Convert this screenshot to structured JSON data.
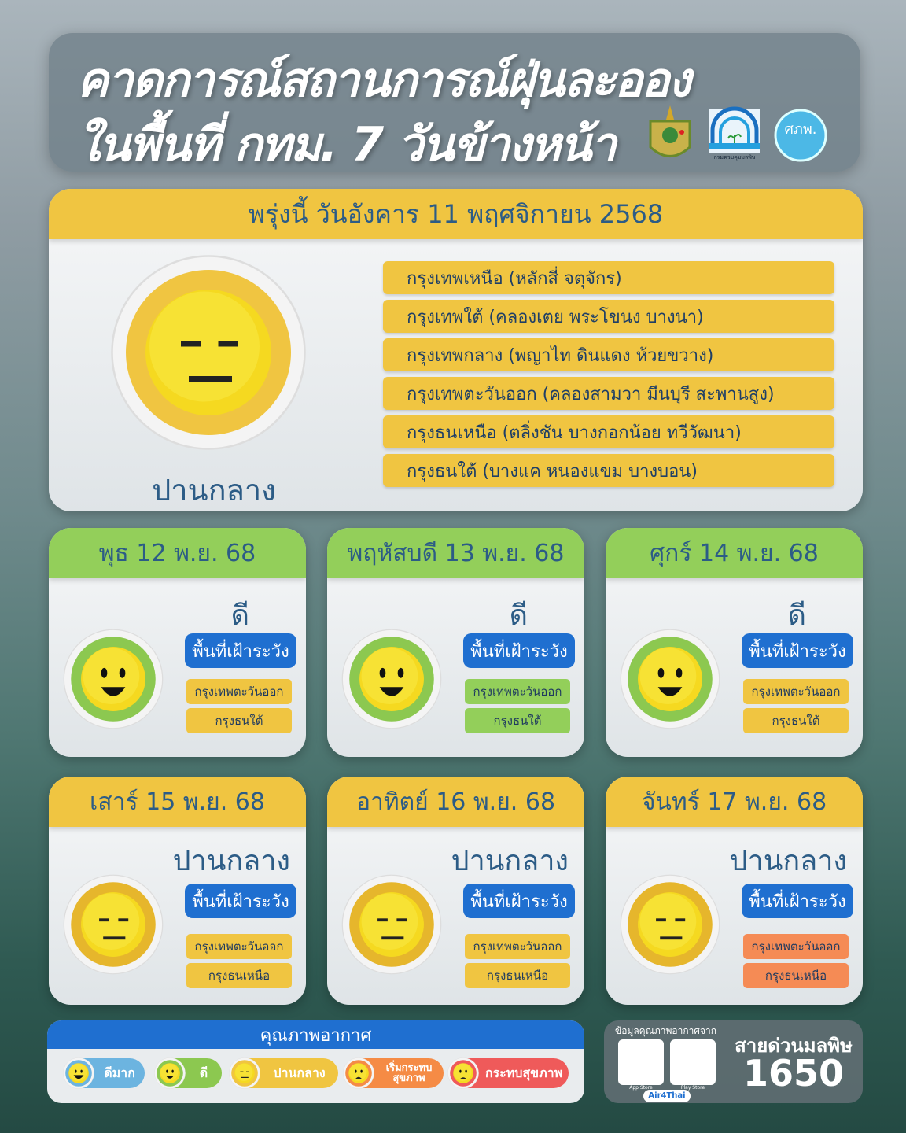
{
  "header": {
    "title_line1": "คาดการณ์สถานการณ์ฝุ่นละออง",
    "title_line2": "ในพื้นที่ กทม. 7 วันข้างหน้า",
    "logos": [
      {
        "name": "bma-seal-icon"
      },
      {
        "name": "pollution-control-department-logo",
        "text": "กรมควบคุมมลพิษ POLLUTION CONTROL DEPARTMENT"
      },
      {
        "name": "tmd-logo",
        "text": "ศภพ."
      }
    ]
  },
  "tomorrow": {
    "date": "พรุ่งนี้ วันอังคาร 11 พฤศจิกายน 2568",
    "level": "ปานกลาง",
    "face": "neutral",
    "color": "#f0c541",
    "areas": [
      "กรุงเทพเหนือ (หลักสี่ จตุจักร)",
      "กรุงเทพใต้ (คลองเตย พระโขนง บางนา)",
      "กรุงเทพกลาง (พญาไท ดินแดง ห้วยขวาง)",
      "กรุงเทพตะวันออก (คลองสามวา มีนบุรี สะพานสูง)",
      "กรุงธนเหนือ (ตลิ่งชัน บางกอกน้อย ทวีวัฒนา)",
      "กรุงธนใต้ (บางแค หนองแขม บางบอน)"
    ]
  },
  "watch_label": "พื้นที่เฝ้าระวัง",
  "days": [
    {
      "date": "พุธ 12 พ.ย. 68",
      "level": "ดี",
      "face": "smile",
      "header_color": "#93cf5a",
      "ring_color": "#8cc850",
      "areas": [
        {
          "name": "กรุงเทพตะวันออก",
          "color": "#f0c541"
        },
        {
          "name": "กรุงธนใต้",
          "color": "#f0c541"
        }
      ]
    },
    {
      "date": "พฤหัสบดี 13 พ.ย. 68",
      "level": "ดี",
      "face": "smile",
      "header_color": "#93cf5a",
      "ring_color": "#8cc850",
      "areas": [
        {
          "name": "กรุงเทพตะวันออก",
          "color": "#93cf5a"
        },
        {
          "name": "กรุงธนใต้",
          "color": "#93cf5a"
        }
      ]
    },
    {
      "date": "ศุกร์ 14 พ.ย. 68",
      "level": "ดี",
      "face": "smile",
      "header_color": "#93cf5a",
      "ring_color": "#8cc850",
      "areas": [
        {
          "name": "กรุงเทพตะวันออก",
          "color": "#f0c541"
        },
        {
          "name": "กรุงธนใต้",
          "color": "#f0c541"
        }
      ]
    },
    {
      "date": "เสาร์ 15 พ.ย. 68",
      "level": "ปานกลาง",
      "face": "neutral",
      "header_color": "#f0c541",
      "ring_color": "#e6b62c",
      "areas": [
        {
          "name": "กรุงเทพตะวันออก",
          "color": "#f0c541"
        },
        {
          "name": "กรุงธนเหนือ",
          "color": "#f0c541"
        }
      ]
    },
    {
      "date": "อาทิตย์ 16 พ.ย. 68",
      "level": "ปานกลาง",
      "face": "neutral",
      "header_color": "#f0c541",
      "ring_color": "#e6b62c",
      "areas": [
        {
          "name": "กรุงเทพตะวันออก",
          "color": "#f0c541"
        },
        {
          "name": "กรุงธนเหนือ",
          "color": "#f0c541"
        }
      ]
    },
    {
      "date": "จันทร์ 17 พ.ย. 68",
      "level": "ปานกลาง",
      "face": "neutral",
      "header_color": "#f0c541",
      "ring_color": "#e6b62c",
      "areas": [
        {
          "name": "กรุงเทพตะวันออก",
          "color": "#f58b55"
        },
        {
          "name": "กรุงธนเหนือ",
          "color": "#f58b55"
        }
      ]
    }
  ],
  "legend": {
    "title": "คุณภาพอากาศ",
    "items": [
      {
        "label": "ดีมาก",
        "face": "very-good",
        "color": "#6cb4e0"
      },
      {
        "label": "ดี",
        "face": "smile",
        "color": "#8cc850"
      },
      {
        "label": "ปานกลาง",
        "face": "neutral",
        "color": "#f0c541"
      },
      {
        "label": "เริ่มกระทบ สุขภาพ",
        "face": "worried",
        "color": "#f58b45"
      },
      {
        "label": "กระทบสุขภาพ",
        "face": "angry",
        "color": "#ef5a5a"
      }
    ]
  },
  "hotline": {
    "source_label": "ข้อมูลคุณภาพอากาศจาก",
    "app_name": "Air4Thai",
    "store_labels": [
      "App Store",
      "Play Store"
    ],
    "title": "สายด่วนมลพิษ",
    "number": "1650"
  }
}
